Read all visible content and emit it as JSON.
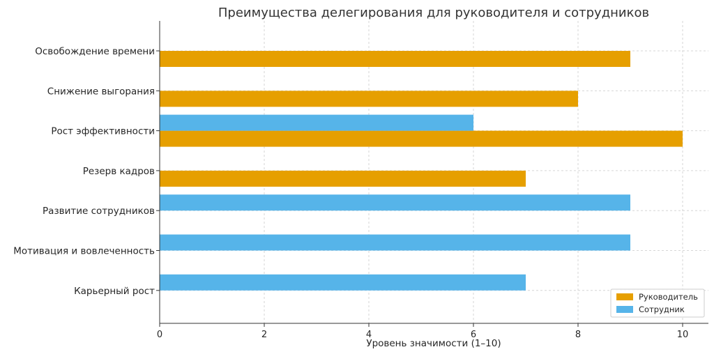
{
  "chart_data": {
    "type": "bar",
    "orientation": "horizontal",
    "title": "Преимущества делегирования для руководителя и сотрудников",
    "xlabel": "Уровень значимости (1–10)",
    "ylabel": "",
    "xlim": [
      0,
      10.5
    ],
    "xticks": [
      "0",
      "2",
      "4",
      "6",
      "8",
      "10"
    ],
    "grid": true,
    "legend_position": "bottom-right",
    "categories": [
      "Освобождение времени",
      "Снижение выгорания",
      "Рост эффективности",
      "Резерв кадров",
      "Развитие сотрудников",
      "Мотивация и вовлеченность",
      "Карьерный рост"
    ],
    "series": [
      {
        "name": "Руководитель",
        "color": "#E69F00",
        "values": [
          9,
          8,
          10,
          7,
          null,
          null,
          null
        ]
      },
      {
        "name": "Сотрудник",
        "color": "#56B4E9",
        "values": [
          null,
          null,
          6,
          null,
          9,
          9,
          7
        ]
      }
    ]
  }
}
